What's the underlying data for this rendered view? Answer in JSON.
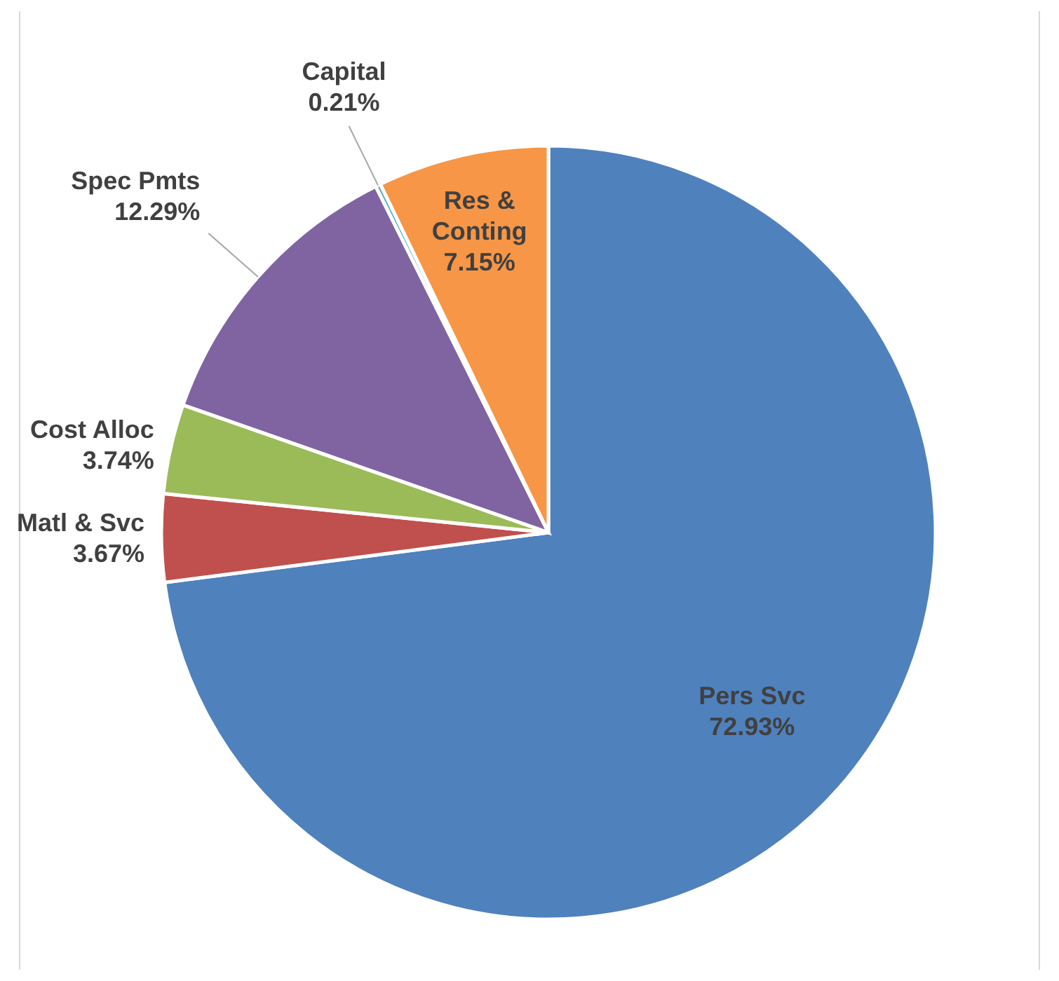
{
  "chart_data": {
    "type": "pie",
    "categories": [
      "Pers Svc",
      "Matl & Svc",
      "Cost Alloc",
      "Spec Pmts",
      "Capital",
      "Res & Conting"
    ],
    "values": [
      72.93,
      3.67,
      3.74,
      12.29,
      0.21,
      7.15
    ],
    "colors": [
      "#4f81bd",
      "#c0504d",
      "#9bbb59",
      "#8064a2",
      "#4bacc6",
      "#f79646"
    ],
    "value_labels": [
      "72.93%",
      "3.67%",
      "3.74%",
      "12.29%",
      "0.21%",
      "7.15%"
    ]
  }
}
